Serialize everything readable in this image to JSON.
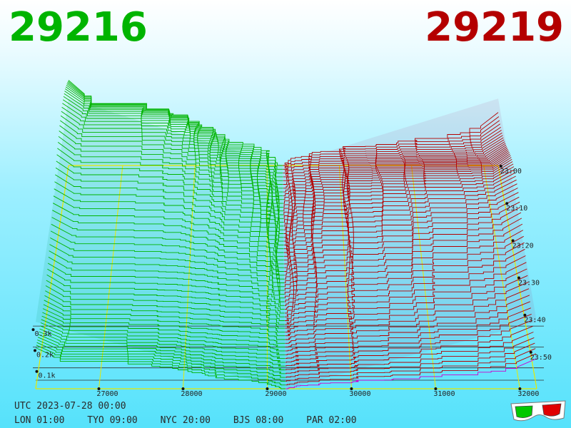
{
  "header": {
    "bid_price": "29216",
    "ask_price": "29219"
  },
  "colors": {
    "bid": "#00b400",
    "ask": "#b40000",
    "grid": "#e8e800",
    "depth_axis": "#303030",
    "latest_ask": "#cc00cc"
  },
  "footer": {
    "utc": "UTC 2023-07-28 00:00",
    "lon": "LON 01:00",
    "tyo": "TYO 09:00",
    "nyc": "NYC 20:00",
    "bjs": "BJS 08:00",
    "par": "PAR 02:00"
  },
  "chart_data": {
    "type": "3d-depth",
    "x_axis": {
      "ticks": [
        "27000",
        "28000",
        "29000",
        "30000",
        "31000",
        "32000"
      ],
      "tick_values": [
        27000,
        28000,
        29000,
        30000,
        31000,
        32000
      ],
      "range": [
        26250,
        32200
      ]
    },
    "depth_axis": {
      "ticks": [
        "0.1k",
        "0.2k",
        "0.3k"
      ],
      "tick_values": [
        100,
        200,
        300
      ]
    },
    "time_axis": {
      "ticks": [
        "23:00",
        "23:10",
        "23:20",
        "23:30",
        "23:40",
        "23:50"
      ]
    },
    "bid_price": 29216,
    "ask_price": 29219,
    "snapshots": 60,
    "icon": "anaglyph-3d-glasses-icon"
  }
}
